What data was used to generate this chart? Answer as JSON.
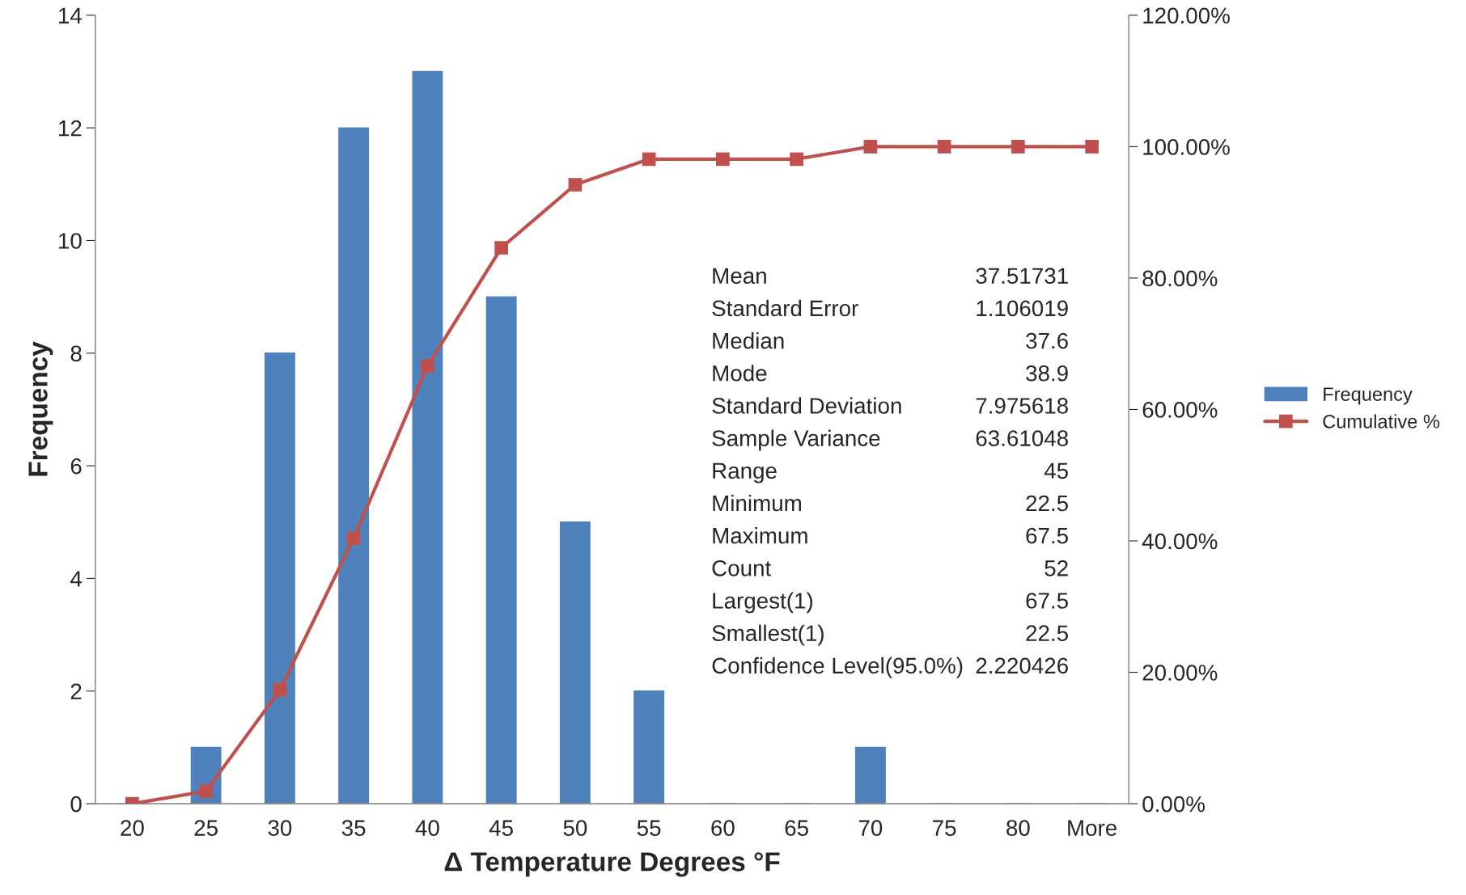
{
  "chart_data": {
    "type": "bar",
    "xlabel": "Δ Temperature Degrees °F",
    "ylabel": "Frequency",
    "categories": [
      "20",
      "25",
      "30",
      "35",
      "40",
      "45",
      "50",
      "55",
      "60",
      "65",
      "70",
      "75",
      "80",
      "More"
    ],
    "series": [
      {
        "name": "Frequency",
        "color": "#4f81bd",
        "values": [
          0,
          1,
          8,
          12,
          13,
          9,
          5,
          2,
          0,
          0,
          1,
          0,
          0,
          0
        ]
      },
      {
        "name": "Cumulative %",
        "type": "line",
        "axis": "y2",
        "color": "#c0504d",
        "marker": "square",
        "values": [
          0,
          1.9,
          17.3,
          40.4,
          66.6,
          84.6,
          94.2,
          98.1,
          98.1,
          98.1,
          100,
          100,
          100,
          100
        ]
      }
    ],
    "ylim": [
      0,
      14
    ],
    "yticks": [
      0,
      2,
      4,
      6,
      8,
      10,
      12,
      14
    ],
    "y2lim": [
      0,
      120
    ],
    "y2ticks": [
      {
        "value": 0,
        "label": "0.00%"
      },
      {
        "value": 20,
        "label": "20.00%"
      },
      {
        "value": 40,
        "label": "40.00%"
      },
      {
        "value": 60,
        "label": "60.00%"
      },
      {
        "value": 80,
        "label": "80.00%"
      },
      {
        "value": 100,
        "label": "100.00%"
      },
      {
        "value": 120,
        "label": "120.00%"
      }
    ],
    "legend": "right",
    "grid": false,
    "annotations": [
      "Mean",
      "37.51731",
      "Standard Error",
      "1.106019",
      "Median",
      "37.6",
      "Mode",
      "38.9",
      "Standard Deviation",
      "7.975618",
      "Sample Variance",
      "63.61048",
      "Range",
      "45",
      "Minimum",
      "22.5",
      "Maximum",
      "67.5",
      "Count",
      "52",
      "Largest(1)",
      "67.5",
      "Smallest(1)",
      "22.5",
      "Confidence Level(95.0%)",
      "2.220426"
    ]
  }
}
